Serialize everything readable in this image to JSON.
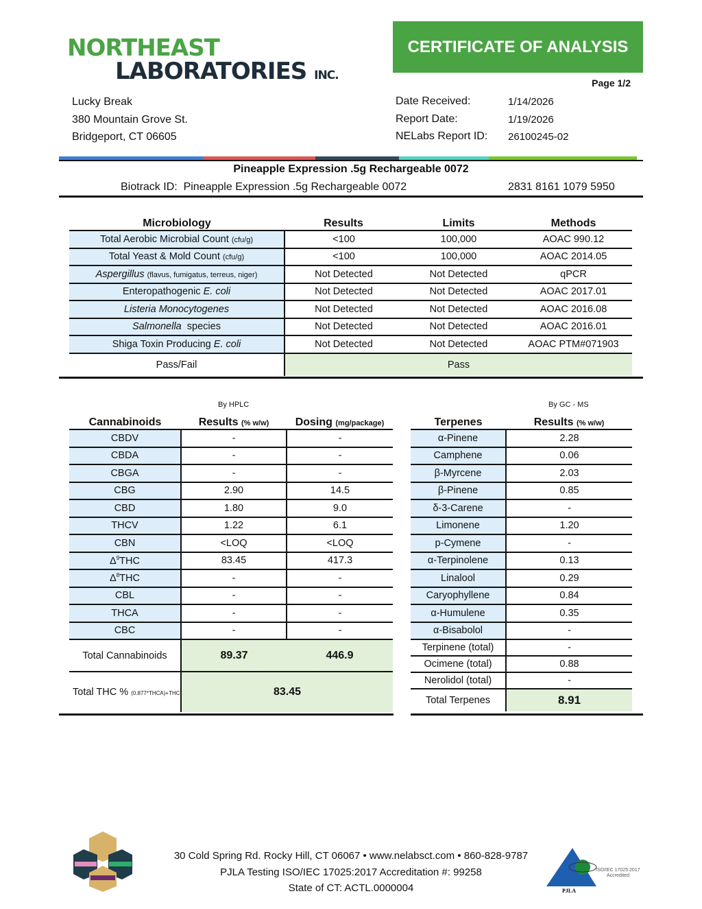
{
  "header": {
    "logo_line1": "NORTHEAST",
    "logo_line2": "LABORATORIES",
    "logo_suffix": "INC.",
    "title": "CERTIFICATE OF ANALYSIS",
    "page": "Page 1/2"
  },
  "client": {
    "name": "Lucky Break",
    "street": "380 Mountain Grove St.",
    "city": "Bridgeport, CT 06605"
  },
  "report": {
    "date_received_label": "Date Received:",
    "date_received": "1/14/2026",
    "report_date_label": "Report Date:",
    "report_date": "1/19/2026",
    "report_id_label": "NELabs Report ID:",
    "report_id": "26100245-02"
  },
  "colors": {
    "brand_green": "#4aa444",
    "bar": [
      "#3f7fd4",
      "#e05555",
      "#34495e",
      "#4fd6c0",
      "#7ac82a"
    ]
  },
  "product": {
    "title": "Pineapple Expression .5g Rechargeable 0072",
    "biotrack_label": "Biotrack ID:",
    "biotrack_name": "Pineapple Expression .5g Rechargeable 0072",
    "biotrack_number": "2831 8161 1079 5950"
  },
  "micro": {
    "headers": [
      "Microbiology",
      "Results",
      "Limits",
      "Methods"
    ],
    "rows": [
      {
        "name": "Total Aerobic Microbial Count",
        "note": "(cfu/g)",
        "result": "<100",
        "limit": "100,000",
        "method": "AOAC 990.12"
      },
      {
        "name": "Total Yeast & Mold Count",
        "note": "(cfu/g)",
        "result": "<100",
        "limit": "100,000",
        "method": "AOAC 2014.05"
      },
      {
        "name": "Aspergillus",
        "note": "(flavus, fumigatus, terreus, niger)",
        "result": "Not Detected",
        "limit": "Not Detected",
        "method": "qPCR"
      },
      {
        "name": "Enteropathogenic",
        "note": "E. coli",
        "result": "Not Detected",
        "limit": "Not Detected",
        "method": "AOAC 2017.01"
      },
      {
        "name": "Listeria Monocytogenes",
        "note": "",
        "result": "Not Detected",
        "limit": "Not Detected",
        "method": "AOAC 2016.08"
      },
      {
        "name": "Salmonella",
        "note": "species",
        "result": "Not Detected",
        "limit": "Not Detected",
        "method": "AOAC 2016.01"
      },
      {
        "name": "Shiga Toxin Producing",
        "note": "E. coli",
        "result": "Not Detected",
        "limit": "Not Detected",
        "method": "AOAC PTM#071903"
      }
    ],
    "passfail_label": "Pass/Fail",
    "passfail": "Pass"
  },
  "cannabinoids": {
    "method": "By HPLC",
    "headers": [
      "Cannabinoids",
      "Results",
      "(% w/w)",
      "Dosing",
      "(mg/package)"
    ],
    "rows": [
      [
        "CBDV",
        "-",
        "-"
      ],
      [
        "CBDA",
        "-",
        "-"
      ],
      [
        "CBGA",
        "-",
        "-"
      ],
      [
        "CBG",
        "2.90",
        "14.5"
      ],
      [
        "CBD",
        "1.80",
        "9.0"
      ],
      [
        "THCV",
        "1.22",
        "6.1"
      ],
      [
        "CBN",
        "<LOQ",
        "<LOQ"
      ],
      [
        "Δ|9|THC",
        "83.45",
        "417.3"
      ],
      [
        "Δ|8|THC",
        "-",
        "-"
      ],
      [
        "CBL",
        "-",
        "-"
      ],
      [
        "THCA",
        "-",
        "-"
      ],
      [
        "CBC",
        "-",
        "-"
      ]
    ],
    "total_label": "Total Cannabinoids",
    "total_result": "89.37",
    "total_dosing": "446.9",
    "thc_label": "Total THC %",
    "thc_formula": "(0.877*THCA)+THC",
    "thc_value": "83.45"
  },
  "terpenes": {
    "method": "By GC - MS",
    "headers": [
      "Terpenes",
      "Results",
      "(% w/w)"
    ],
    "rows": [
      [
        "α-Pinene",
        "2.28"
      ],
      [
        "Camphene",
        "0.06"
      ],
      [
        "β-Myrcene",
        "2.03"
      ],
      [
        "β-Pinene",
        "0.85"
      ],
      [
        "δ-3-Carene",
        "-"
      ],
      [
        "Limonene",
        "1.20"
      ],
      [
        "p-Cymene",
        "-"
      ],
      [
        "α-Terpinolene",
        "0.13"
      ],
      [
        "Linalool",
        "0.29"
      ],
      [
        "Caryophyllene",
        "0.84"
      ],
      [
        "α-Humulene",
        "0.35"
      ],
      [
        "α-Bisabolol",
        "-"
      ],
      [
        "Terpinene (total)",
        "-"
      ],
      [
        "Ocimene (total)",
        "0.88"
      ],
      [
        "Nerolidol (total)",
        "-"
      ]
    ],
    "total_label": "Total Terpenes",
    "total": "8.91"
  },
  "footer": {
    "line1": "30 Cold Spring Rd. Rocky Hill, CT 06067  •  www.nelabsct.com  •  860-828-9787",
    "line2": "PJLA Testing ISO/IEC 17025:2017 Accreditation #: 99258",
    "line3": "State of CT: ACTL.0000004",
    "pjla_text": "ISO/IEC 17025:2017 Accredited",
    "pjla_label": "PJLA"
  }
}
